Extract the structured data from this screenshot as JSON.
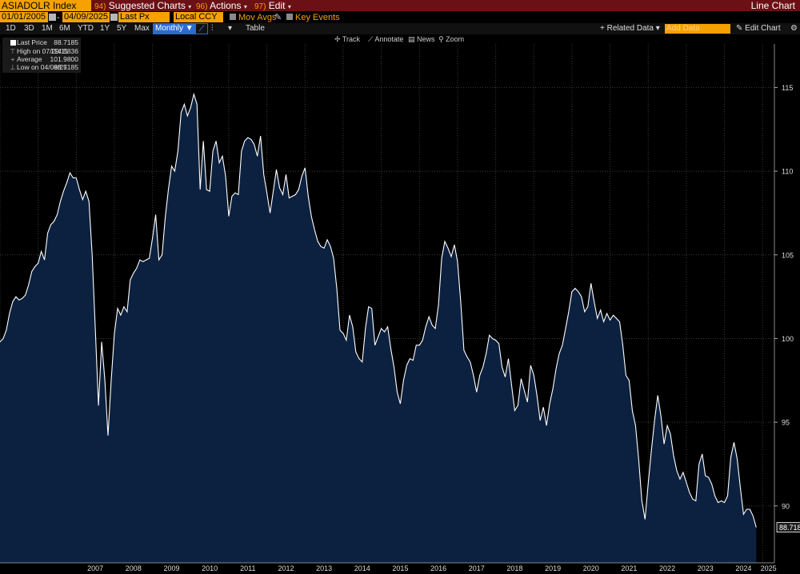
{
  "title_bar": {
    "ticker": "ASIADOLR Index",
    "suggested": {
      "num": "94)",
      "label": "Suggested Charts"
    },
    "actions": {
      "num": "96)",
      "label": "Actions"
    },
    "edit": {
      "num": "97)",
      "label": "Edit"
    },
    "chart_type": "Line Chart"
  },
  "controls": {
    "start_date": "01/01/2005",
    "end_date": "04/09/2025",
    "field": "Last Px",
    "currency": "Local CCY",
    "mov_avgs": "Mov Avgs",
    "key_events": "Key Events"
  },
  "toolbar": {
    "ranges": [
      "1D",
      "3D",
      "1M",
      "6M",
      "YTD",
      "1Y",
      "5Y",
      "Max"
    ],
    "frequency": "Monthly",
    "table": "Table",
    "related_data": "+ Related Data",
    "add_data": "Add Data",
    "edit_chart": "Edit Chart"
  },
  "chart_tools": [
    "Track",
    "Annotate",
    "News",
    "Zoom"
  ],
  "legend": {
    "last_price": {
      "label": "Last Price",
      "value": "88.7185"
    },
    "high": {
      "label": "High on 07/29/11",
      "value": "114.5836"
    },
    "average": {
      "label": "Average",
      "value": "101.9800"
    },
    "low": {
      "label": "Low on 04/09/25",
      "value": "88.7185"
    }
  },
  "chart_data": {
    "type": "area",
    "series": [
      {
        "name": "Last Price",
        "x_start": "2005-01",
        "frequency": "monthly",
        "values": [
          99.8,
          100,
          100.5,
          101.5,
          102.2,
          102.5,
          102.3,
          102.4,
          102.6,
          103.2,
          104,
          104.3,
          104.5,
          105.2,
          104.7,
          106.3,
          106.8,
          107,
          107.4,
          108.2,
          108.8,
          109.3,
          109.9,
          109.6,
          109.6,
          108.9,
          108.3,
          108.8,
          108.2,
          105,
          100.5,
          96,
          99.8,
          97.5,
          94.2,
          97.5,
          100.3,
          101.8,
          101.4,
          101.9,
          101.6,
          103.5,
          103.9,
          104.2,
          104.7,
          104.6,
          104.7,
          104.8,
          106,
          107.4,
          104.7,
          105,
          107.2,
          108.9,
          110.3,
          110,
          111.2,
          113.5,
          114,
          113.3,
          113.8,
          114.6,
          114,
          108.9,
          111.8,
          108.9,
          108.8,
          111.2,
          111.8,
          110.5,
          110.9,
          109.7,
          107.3,
          108.5,
          108.7,
          108.6,
          111.2,
          111.8,
          112,
          111.9,
          111.6,
          110.9,
          112.1,
          109.8,
          108.7,
          107.5,
          108.8,
          110.1,
          109,
          108.6,
          109.8,
          108.4,
          108.5,
          108.6,
          108.9,
          109.7,
          110.2,
          108.5,
          107.3,
          106.5,
          105.8,
          105.5,
          105.4,
          105.9,
          105.5,
          104.8,
          103,
          100.5,
          100.3,
          99.9,
          101.4,
          100.7,
          99.2,
          98.8,
          98.6,
          100.6,
          101.9,
          101.8,
          99.6,
          100.1,
          100.6,
          100.4,
          100.7,
          99.4,
          98.3,
          96.8,
          96.1,
          97.5,
          98.4,
          98.8,
          98.7,
          99.6,
          99.6,
          99.9,
          100.7,
          101.3,
          100.8,
          100.6,
          102,
          104.8,
          105.8,
          105.4,
          104.9,
          105.6,
          104.6,
          102.2,
          99.3,
          98.9,
          98.6,
          97.8,
          96.8,
          97.8,
          98.3,
          99.1,
          100.2,
          100,
          99.9,
          99.7,
          98.3,
          97.7,
          98.8,
          97.2,
          95.7,
          96,
          97.6,
          96.9,
          96.2,
          98.4,
          97.8,
          96.6,
          95.1,
          95.9,
          94.8,
          96.1,
          97,
          98.2,
          99.1,
          99.6,
          100.6,
          101.6,
          102.8,
          103,
          102.8,
          102.5,
          101.6,
          101.9,
          103.3,
          102.2,
          101.2,
          101.7,
          101,
          101.5,
          101.1,
          101.4,
          101.2,
          101,
          99.6,
          97.8,
          97.5,
          95.7,
          94.8,
          92.8,
          90.3,
          89.2,
          91.3,
          93.3,
          95.1,
          96.6,
          95.4,
          93.7,
          94.8,
          94.3,
          93,
          92.1,
          91.6,
          92,
          91.4,
          90.8,
          90.4,
          90.3,
          92.5,
          93.1,
          91.8,
          91.7,
          91.3,
          90.6,
          90.2,
          90.3,
          90.2,
          90.6,
          92.9,
          93.8,
          92.8,
          91.1,
          89.5,
          89.8,
          89.8,
          89.4,
          88.72
        ]
      }
    ],
    "ylim": [
      86.6,
      117.6
    ],
    "y_ticks": [
      90,
      95,
      100,
      105,
      110,
      115
    ],
    "x_ticks": [
      "2007",
      "2008",
      "2009",
      "2010",
      "2011",
      "2012",
      "2013",
      "2014",
      "2015",
      "2016",
      "2017",
      "2018",
      "2019",
      "2020",
      "2021",
      "2022",
      "2023",
      "2024",
      "2025"
    ],
    "last_value_label": "88.7185",
    "grid": true,
    "colors": {
      "line": "#ffffff",
      "fill": "#0c2140",
      "grid": "#3a3a3a"
    }
  }
}
